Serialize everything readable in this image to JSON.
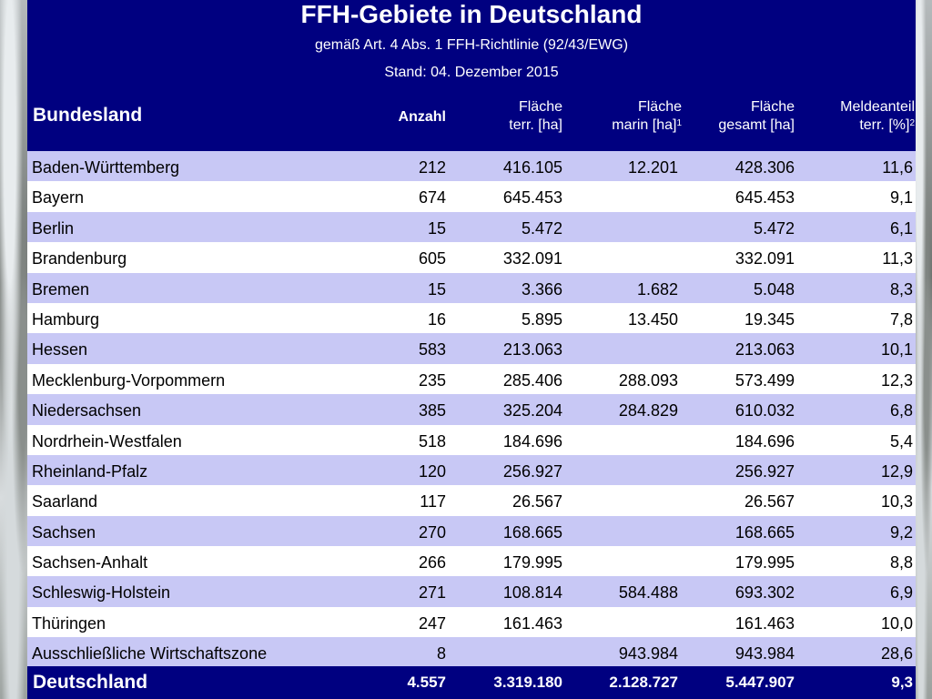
{
  "header": {
    "title": "FFH-Gebiete in Deutschland",
    "subtitle": "gemäß Art. 4 Abs. 1 FFH-Richtlinie (92/43/EWG)",
    "stand": "Stand: 04. Dezember 2015"
  },
  "columns": {
    "bundesland": "Bundesland",
    "anzahl": "Anzahl",
    "terr_line1": "Fläche",
    "terr_line2": "terr. [ha]",
    "marin_line1": "Fläche",
    "marin_line2": "marin [ha]",
    "marin_sup": "1",
    "gesamt_line1": "Fläche",
    "gesamt_line2": "gesamt [ha]",
    "melde_line1": "Meldeanteil",
    "melde_line2": "terr. [%]",
    "melde_sup": "2"
  },
  "rows": [
    {
      "name": "Baden-Württemberg",
      "anzahl": "212",
      "terr": "416.105",
      "marin": "12.201",
      "gesamt": "428.306",
      "melde": "11,6"
    },
    {
      "name": "Bayern",
      "anzahl": "674",
      "terr": "645.453",
      "marin": "",
      "gesamt": "645.453",
      "melde": "9,1"
    },
    {
      "name": "Berlin",
      "anzahl": "15",
      "terr": "5.472",
      "marin": "",
      "gesamt": "5.472",
      "melde": "6,1"
    },
    {
      "name": "Brandenburg",
      "anzahl": "605",
      "terr": "332.091",
      "marin": "",
      "gesamt": "332.091",
      "melde": "11,3"
    },
    {
      "name": "Bremen",
      "anzahl": "15",
      "terr": "3.366",
      "marin": "1.682",
      "gesamt": "5.048",
      "melde": "8,3"
    },
    {
      "name": "Hamburg",
      "anzahl": "16",
      "terr": "5.895",
      "marin": "13.450",
      "gesamt": "19.345",
      "melde": "7,8"
    },
    {
      "name": "Hessen",
      "anzahl": "583",
      "terr": "213.063",
      "marin": "",
      "gesamt": "213.063",
      "melde": "10,1"
    },
    {
      "name": "Mecklenburg-Vorpommern",
      "anzahl": "235",
      "terr": "285.406",
      "marin": "288.093",
      "gesamt": "573.499",
      "melde": "12,3"
    },
    {
      "name": "Niedersachsen",
      "anzahl": "385",
      "terr": "325.204",
      "marin": "284.829",
      "gesamt": "610.032",
      "melde": "6,8"
    },
    {
      "name": "Nordrhein-Westfalen",
      "anzahl": "518",
      "terr": "184.696",
      "marin": "",
      "gesamt": "184.696",
      "melde": "5,4"
    },
    {
      "name": "Rheinland-Pfalz",
      "anzahl": "120",
      "terr": "256.927",
      "marin": "",
      "gesamt": "256.927",
      "melde": "12,9"
    },
    {
      "name": "Saarland",
      "anzahl": "117",
      "terr": "26.567",
      "marin": "",
      "gesamt": "26.567",
      "melde": "10,3"
    },
    {
      "name": "Sachsen",
      "anzahl": "270",
      "terr": "168.665",
      "marin": "",
      "gesamt": "168.665",
      "melde": "9,2"
    },
    {
      "name": "Sachsen-Anhalt",
      "anzahl": "266",
      "terr": "179.995",
      "marin": "",
      "gesamt": "179.995",
      "melde": "8,8"
    },
    {
      "name": "Schleswig-Holstein",
      "anzahl": "271",
      "terr": "108.814",
      "marin": "584.488",
      "gesamt": "693.302",
      "melde": "6,9"
    },
    {
      "name": "Thüringen",
      "anzahl": "247",
      "terr": "161.463",
      "marin": "",
      "gesamt": "161.463",
      "melde": "10,0"
    },
    {
      "name": "Ausschließliche Wirtschaftszone",
      "anzahl": "8",
      "terr": "",
      "marin": "943.984",
      "gesamt": "943.984",
      "melde": "28,6"
    }
  ],
  "total": {
    "name": "Deutschland",
    "anzahl": "4.557",
    "terr": "3.319.180",
    "marin": "2.128.727",
    "gesamt": "5.447.907",
    "melde": "9,3"
  },
  "colors": {
    "header_bg": "#000080",
    "row_odd": "#c8c8f5",
    "row_even": "#ffffff"
  }
}
